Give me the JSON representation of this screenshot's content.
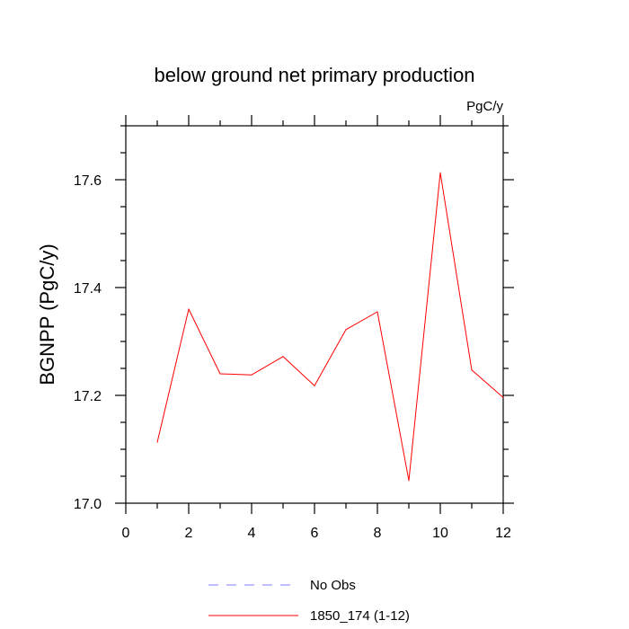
{
  "chart_data": {
    "type": "line",
    "title": "below ground net primary production",
    "units": "PgC/y",
    "ylabel": "BGNPP  (PgC/y)",
    "xlabel": "",
    "xlim": [
      0,
      12
    ],
    "ylim": [
      17.0,
      17.7
    ],
    "xticks": [
      0,
      2,
      4,
      6,
      8,
      10,
      12
    ],
    "xtick_labels": [
      "0",
      "2",
      "4",
      "6",
      "8",
      "10",
      "12"
    ],
    "yticks": [
      17.0,
      17.2,
      17.4,
      17.6
    ],
    "ytick_labels": [
      "17.0",
      "17.2",
      "17.4",
      "17.6"
    ],
    "grid": false,
    "series": [
      {
        "name": "1850_174 (1-12)",
        "color": "#ff0000",
        "style": "solid",
        "x": [
          1,
          2,
          3,
          4,
          5,
          6,
          7,
          8,
          9,
          10,
          11,
          12
        ],
        "values": [
          17.113,
          17.36,
          17.24,
          17.238,
          17.272,
          17.218,
          17.322,
          17.355,
          17.042,
          17.613,
          17.247,
          17.196
        ]
      }
    ],
    "legend": {
      "placement": "bottom",
      "entries": [
        {
          "label": "No Obs",
          "color": "#8080ff",
          "style": "dashed"
        },
        {
          "label": "1850_174 (1-12)",
          "color": "#ff0000",
          "style": "solid"
        }
      ]
    }
  }
}
